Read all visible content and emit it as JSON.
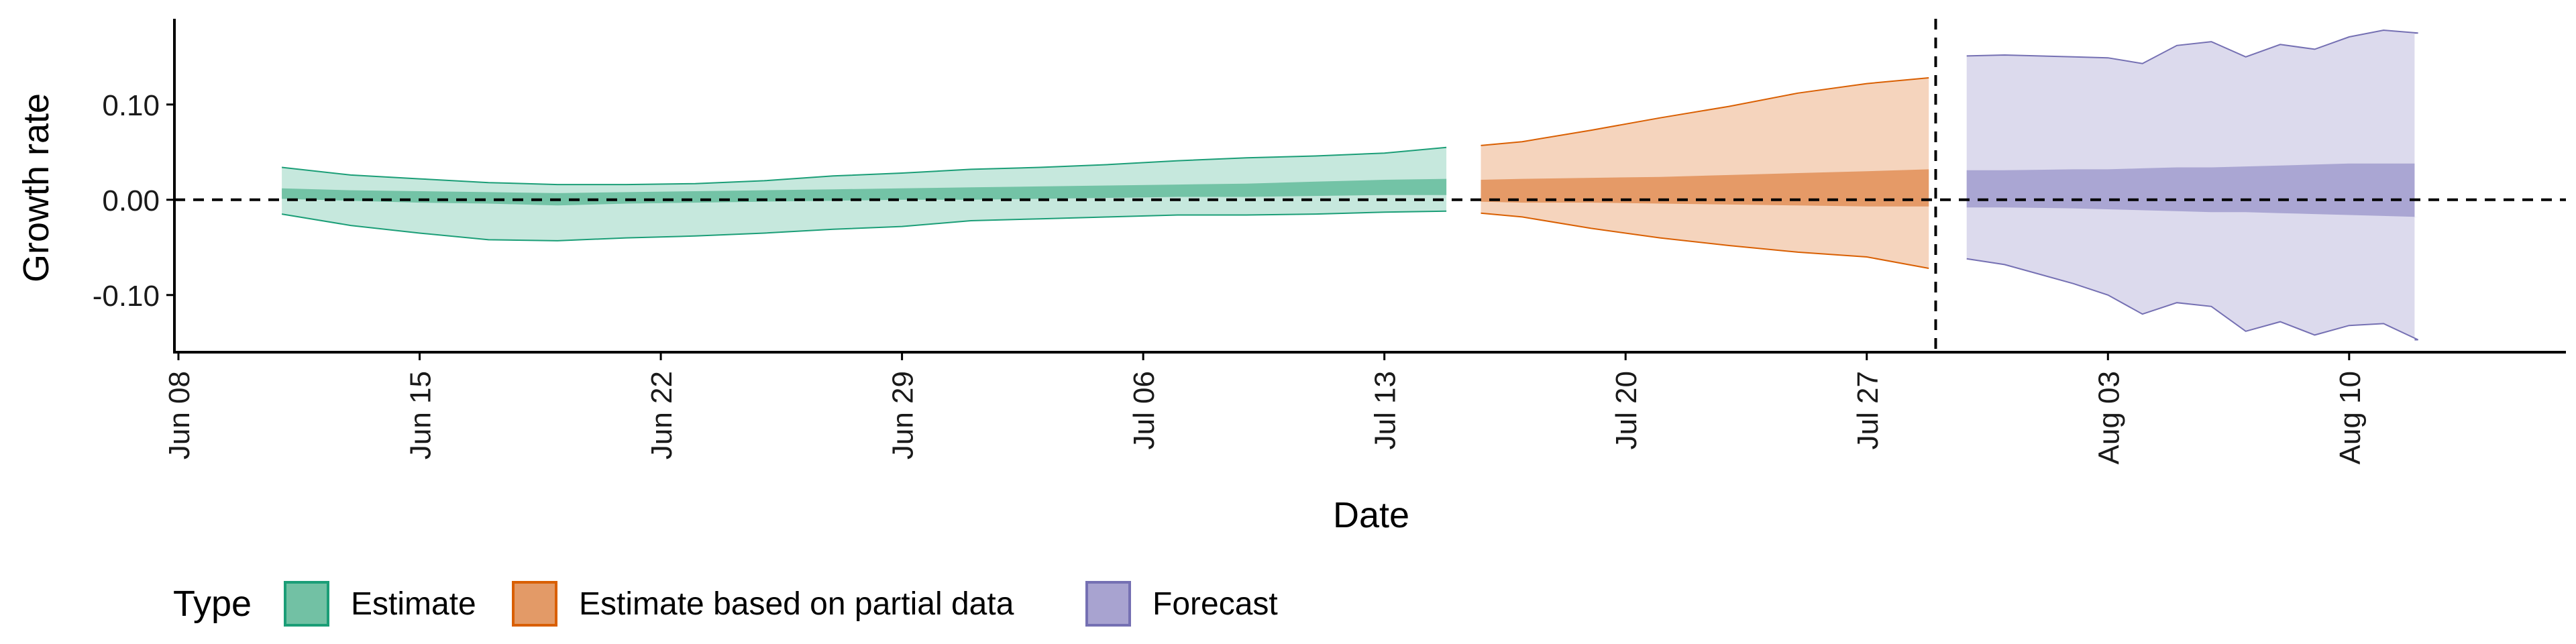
{
  "chart_data": {
    "type": "area",
    "title": "",
    "xlabel": "Date",
    "ylabel": "Growth rate",
    "x_start": "Jun 08",
    "xlim_days": [
      0,
      69
    ],
    "ylim": [
      -0.16,
      0.19
    ],
    "x_ticks": [
      {
        "day": 0,
        "label": "Jun 08"
      },
      {
        "day": 7,
        "label": "Jun 15"
      },
      {
        "day": 14,
        "label": "Jun 22"
      },
      {
        "day": 21,
        "label": "Jun 29"
      },
      {
        "day": 28,
        "label": "Jul 06"
      },
      {
        "day": 35,
        "label": "Jul 13"
      },
      {
        "day": 42,
        "label": "Jul 20"
      },
      {
        "day": 49,
        "label": "Jul 27"
      },
      {
        "day": 56,
        "label": "Aug 03"
      },
      {
        "day": 63,
        "label": "Aug 10"
      }
    ],
    "y_ticks": [
      {
        "value": 0.1,
        "label": "0.10"
      },
      {
        "value": 0.0,
        "label": "0.00"
      },
      {
        "value": -0.1,
        "label": "-0.10"
      }
    ],
    "reference_lines": {
      "horizontal_y": 0.0,
      "vertical_day": 51.0
    },
    "legend": {
      "title": "Type",
      "position": "bottom",
      "entries": [
        {
          "key": "estimate",
          "label": "Estimate"
        },
        {
          "key": "partial",
          "label": "Estimate based on partial data"
        },
        {
          "key": "forecast",
          "label": "Forecast"
        }
      ]
    },
    "series": [
      {
        "name": "Estimate",
        "fill_outer": "#c6e8dd",
        "fill_inner": "#73c3a6",
        "stroke": "#1b9e77",
        "legend_fill": "#72c1a4",
        "days": [
          3,
          5,
          7,
          9,
          11,
          13,
          15,
          17,
          19,
          21,
          23,
          25,
          27,
          29,
          31,
          33,
          35,
          36.8
        ],
        "lower90": [
          -0.015,
          -0.027,
          -0.035,
          -0.042,
          -0.043,
          -0.04,
          -0.038,
          -0.035,
          -0.031,
          -0.028,
          -0.022,
          -0.02,
          -0.018,
          -0.016,
          -0.016,
          -0.015,
          -0.013,
          -0.012
        ],
        "upper90": [
          0.034,
          0.026,
          0.022,
          0.018,
          0.016,
          0.016,
          0.017,
          0.02,
          0.025,
          0.028,
          0.032,
          0.034,
          0.037,
          0.041,
          0.044,
          0.046,
          0.049,
          0.055
        ],
        "lower50": [
          0.001,
          -0.001,
          -0.003,
          -0.004,
          -0.006,
          -0.004,
          -0.003,
          -0.002,
          -0.001,
          0.0,
          0.0,
          0.001,
          0.002,
          0.003,
          0.003,
          0.004,
          0.005,
          0.005
        ],
        "upper50": [
          0.012,
          0.01,
          0.009,
          0.008,
          0.007,
          0.008,
          0.009,
          0.01,
          0.011,
          0.012,
          0.013,
          0.014,
          0.015,
          0.016,
          0.017,
          0.019,
          0.021,
          0.022
        ]
      },
      {
        "name": "Estimate based on partial data",
        "fill_outer": "#f5d4bd",
        "fill_inner": "#e59a67",
        "stroke": "#d95f02",
        "legend_fill": "#e39a67",
        "days": [
          37.8,
          39,
          41,
          43,
          45,
          47,
          49,
          50.8
        ],
        "lower90": [
          -0.014,
          -0.018,
          -0.03,
          -0.04,
          -0.048,
          -0.055,
          -0.06,
          -0.072
        ],
        "upper90": [
          0.057,
          0.061,
          0.073,
          0.086,
          0.098,
          0.112,
          0.122,
          0.128
        ],
        "lower50": [
          -0.002,
          -0.003,
          -0.003,
          -0.004,
          -0.005,
          -0.006,
          -0.007,
          -0.007
        ],
        "upper50": [
          0.021,
          0.022,
          0.023,
          0.024,
          0.026,
          0.028,
          0.03,
          0.032
        ]
      },
      {
        "name": "Forecast",
        "fill_outer": "#dcdaed",
        "fill_inner": "#aaa6d3",
        "stroke": "#7570b3",
        "legend_fill": "#a8a3d0",
        "days": [
          51.9,
          53,
          55,
          56,
          57,
          58,
          59,
          60,
          61,
          62,
          63,
          64,
          65,
          64.9
        ],
        "lower90": [
          -0.062,
          -0.068,
          -0.088,
          -0.1,
          -0.12,
          -0.108,
          -0.112,
          -0.138,
          -0.128,
          -0.142,
          -0.132,
          -0.13,
          -0.147,
          -0.147
        ],
        "upper90": [
          0.151,
          0.152,
          0.15,
          0.149,
          0.143,
          0.162,
          0.166,
          0.15,
          0.163,
          0.158,
          0.171,
          0.178,
          0.175,
          0.175
        ],
        "lower50": [
          -0.008,
          -0.008,
          -0.009,
          -0.01,
          -0.011,
          -0.012,
          -0.013,
          -0.013,
          -0.014,
          -0.015,
          -0.016,
          -0.017,
          -0.018,
          -0.018
        ],
        "upper50": [
          0.031,
          0.031,
          0.032,
          0.032,
          0.033,
          0.034,
          0.034,
          0.035,
          0.036,
          0.037,
          0.038,
          0.038,
          0.038,
          0.038
        ]
      }
    ]
  }
}
